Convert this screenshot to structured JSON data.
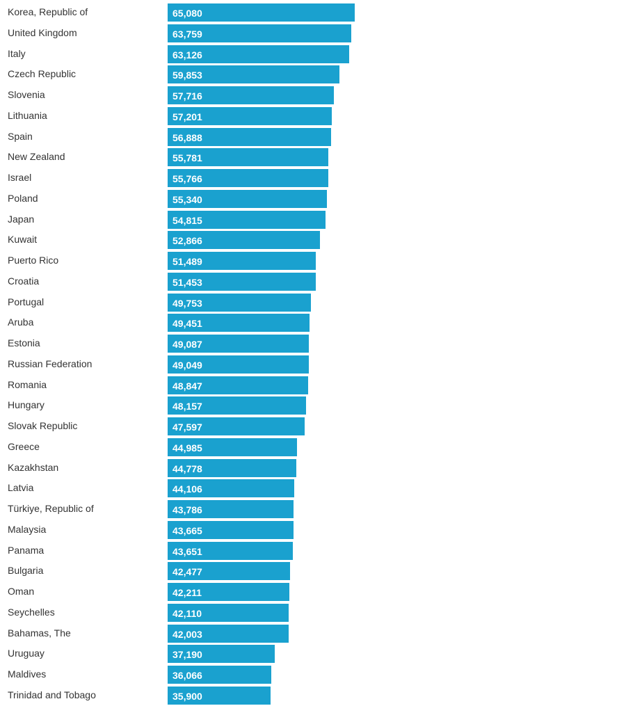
{
  "chart_data": {
    "type": "bar",
    "orientation": "horizontal",
    "bar_color": "#1aa1cf",
    "label_color": "#333333",
    "value_label_color": "#ffffff",
    "xlim": [
      0,
      65080
    ],
    "grid": false,
    "legend": "none",
    "categories": [
      "Korea, Republic of",
      "United Kingdom",
      "Italy",
      "Czech Republic",
      "Slovenia",
      "Lithuania",
      "Spain",
      "New Zealand",
      "Israel",
      "Poland",
      "Japan",
      "Kuwait",
      "Puerto Rico",
      "Croatia",
      "Portugal",
      "Aruba",
      "Estonia",
      "Russian Federation",
      "Romania",
      "Hungary",
      "Slovak Republic",
      "Greece",
      "Kazakhstan",
      "Latvia",
      "Türkiye, Republic of",
      "Malaysia",
      "Panama",
      "Bulgaria",
      "Oman",
      "Seychelles",
      "Bahamas, The",
      "Uruguay",
      "Maldives",
      "Trinidad and Tobago"
    ],
    "values": [
      65080,
      63759,
      63126,
      59853,
      57716,
      57201,
      56888,
      55781,
      55766,
      55340,
      54815,
      52866,
      51489,
      51453,
      49753,
      49451,
      49087,
      49049,
      48847,
      48157,
      47597,
      44985,
      44778,
      44106,
      43786,
      43665,
      43651,
      42477,
      42211,
      42110,
      42003,
      37190,
      36066,
      35900
    ],
    "value_labels": [
      "65,080",
      "63,759",
      "63,126",
      "59,853",
      "57,716",
      "57,201",
      "56,888",
      "55,781",
      "55,766",
      "55,340",
      "54,815",
      "52,866",
      "51,489",
      "51,453",
      "49,753",
      "49,451",
      "49,087",
      "49,049",
      "48,847",
      "48,157",
      "47,597",
      "44,985",
      "44,778",
      "44,106",
      "43,786",
      "43,665",
      "43,651",
      "42,477",
      "42,211",
      "42,110",
      "42,003",
      "37,190",
      "36,066",
      "35,900"
    ]
  }
}
